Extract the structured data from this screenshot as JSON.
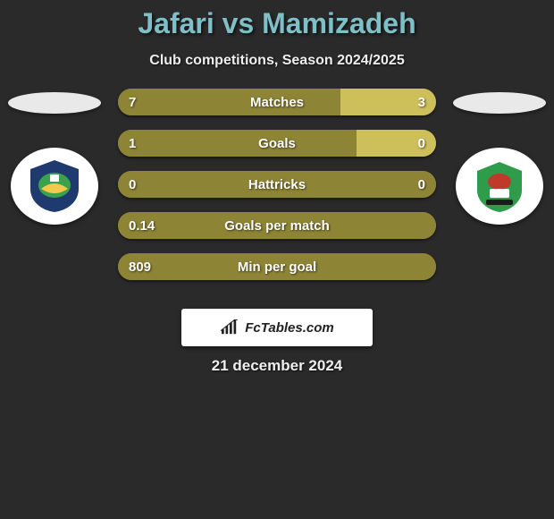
{
  "title": {
    "name1": "Jafari",
    "vs": "vs",
    "name2": "Mamizadeh",
    "color": "#7fbfc8",
    "fontsize": 32
  },
  "subtitle": "Club competitions, Season 2024/2025",
  "date": "21 december 2024",
  "watermark": "FcTables.com",
  "background_color": "#2a2a2a",
  "text_color": "#eeeeee",
  "bar_style": {
    "base_color": "#8e8436",
    "highlight_color": "#cdbf5a",
    "height": 30,
    "radius": 16,
    "font_color": "#ffffff",
    "fontsize": 15
  },
  "crest_left": {
    "bg": "#ffffff",
    "primary": "#1f3a6e",
    "accent1": "#3aa24a",
    "accent2": "#f2c94c"
  },
  "crest_right": {
    "bg": "#ffffff",
    "primary": "#2e9c4b",
    "accent1": "#c0392b",
    "accent2": "#1b1b1b"
  },
  "stats": [
    {
      "label": "Matches",
      "left_val": "7",
      "right_val": "3",
      "left_pct": 70,
      "right_pct": 30,
      "dominant": "left"
    },
    {
      "label": "Goals",
      "left_val": "1",
      "right_val": "0",
      "left_pct": 75,
      "right_pct": 25,
      "dominant": "left"
    },
    {
      "label": "Hattricks",
      "left_val": "0",
      "right_val": "0",
      "left_pct": 50,
      "right_pct": 50,
      "dominant": "none"
    },
    {
      "label": "Goals per match",
      "left_val": "0.14",
      "right_val": "",
      "left_pct": 100,
      "right_pct": 0,
      "dominant": "left"
    },
    {
      "label": "Min per goal",
      "left_val": "809",
      "right_val": "",
      "left_pct": 100,
      "right_pct": 0,
      "dominant": "left"
    }
  ]
}
